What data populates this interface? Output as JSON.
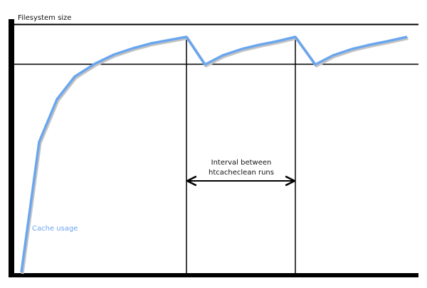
{
  "diagram": {
    "y_axis_label": "Filesystem size",
    "series_label": "Cache usage",
    "interval_label_line1": "Interval between",
    "interval_label_line2": "htcacheclean runs",
    "colors": {
      "curve": "#6aa6ee",
      "curve_shadow": "#bdbdbd",
      "axes": "#000000"
    }
  }
}
